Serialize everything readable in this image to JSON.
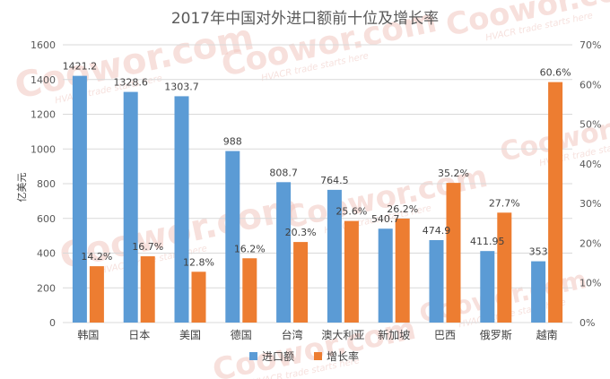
{
  "chart_data": {
    "type": "bar",
    "title": "2017年中国对外进口额前十位及增长率",
    "ylabel": "亿美元",
    "categories": [
      "韩国",
      "日本",
      "美国",
      "德国",
      "台湾",
      "澳大利亚",
      "新加坡",
      "巴西",
      "俄罗斯",
      "越南"
    ],
    "series": [
      {
        "name": "进口额",
        "axis": "left",
        "color": "#5b9bd5",
        "values": [
          1421.2,
          1328.6,
          1303.7,
          988,
          808.7,
          764.5,
          540.7,
          474.9,
          411.95,
          353
        ],
        "labels": [
          "1421.2",
          "1328.6",
          "1303.7",
          "988",
          "808.7",
          "764.5",
          "540.7",
          "474.9",
          "411.95",
          "353"
        ]
      },
      {
        "name": "增长率",
        "axis": "right",
        "color": "#ed7d31",
        "values": [
          14.2,
          16.7,
          12.8,
          16.2,
          20.3,
          25.6,
          26.2,
          35.2,
          27.7,
          60.6
        ],
        "labels": [
          "14.2%",
          "16.7%",
          "12.8%",
          "16.2%",
          "20.3%",
          "25.6%",
          "26.2%",
          "35.2%",
          "27.7%",
          "60.6%"
        ]
      }
    ],
    "ylim": [
      0,
      1600
    ],
    "yticks": [
      "0",
      "200",
      "400",
      "600",
      "800",
      "1000",
      "1200",
      "1400",
      "1600"
    ],
    "y2lim": [
      0,
      70
    ],
    "y2ticks": [
      "0%",
      "10%",
      "20%",
      "30%",
      "40%",
      "50%",
      "60%",
      "70%"
    ],
    "grid": true,
    "legend_position": "bottom"
  },
  "watermark": {
    "brand": "Coowor.com",
    "tagline": "HVACR trade starts here"
  }
}
